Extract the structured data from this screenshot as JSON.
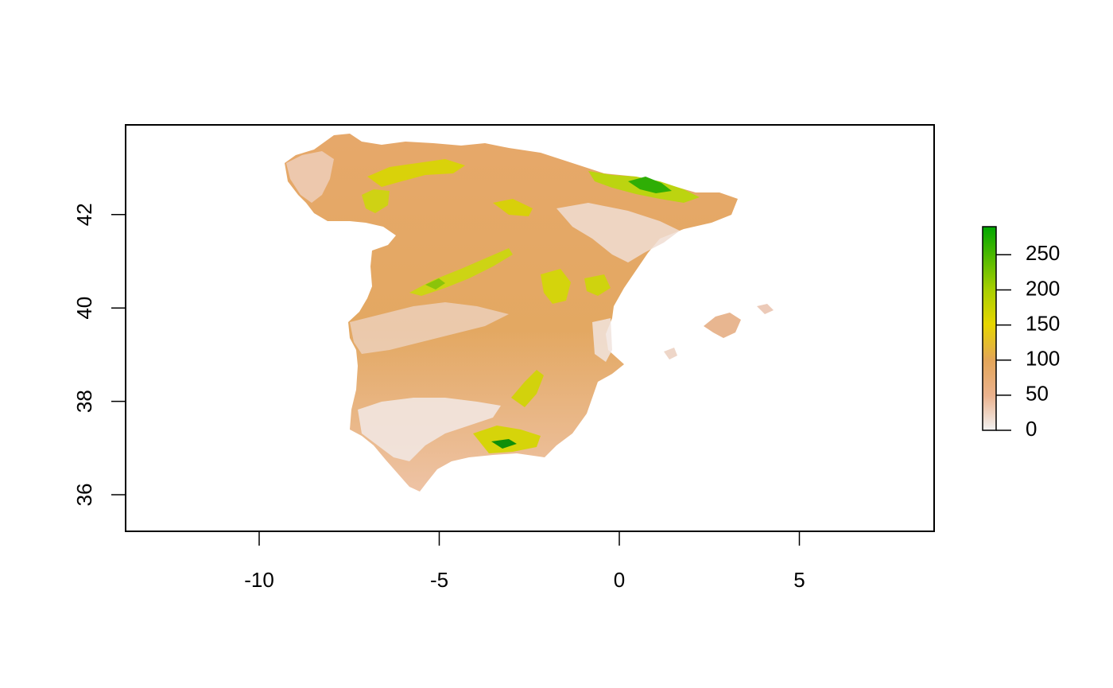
{
  "chart_data": {
    "type": "heatmap",
    "title": "",
    "xlabel": "",
    "ylabel": "",
    "xlim": [
      -13.8,
      8.8
    ],
    "ylim": [
      35.2,
      43.8
    ],
    "x_ticks": [
      -10,
      -5,
      0,
      5
    ],
    "x_tick_labels": [
      "-10",
      "-5",
      "0",
      "5"
    ],
    "y_ticks": [
      36,
      38,
      40,
      42
    ],
    "y_tick_labels": [
      "36",
      "38",
      "40",
      "42"
    ],
    "legend": {
      "placement": "right",
      "range": [
        0,
        290
      ],
      "ticks": [
        0,
        50,
        100,
        150,
        200,
        250
      ],
      "tick_labels": [
        "0",
        "50",
        "100",
        "150",
        "200",
        "250"
      ],
      "colors": [
        "#f2f2f2",
        "#ebb28e",
        "#e3a558",
        "#e6d600",
        "#a8cf00",
        "#00a600"
      ]
    },
    "raster_color_stops": [
      {
        "value": 0,
        "color": "#f2f2f2"
      },
      {
        "value": 50,
        "color": "#ebb28e"
      },
      {
        "value": 100,
        "color": "#e3a558"
      },
      {
        "value": 150,
        "color": "#e6d600"
      },
      {
        "value": 200,
        "color": "#a8cf00"
      },
      {
        "value": 290,
        "color": "#00a600"
      }
    ]
  }
}
